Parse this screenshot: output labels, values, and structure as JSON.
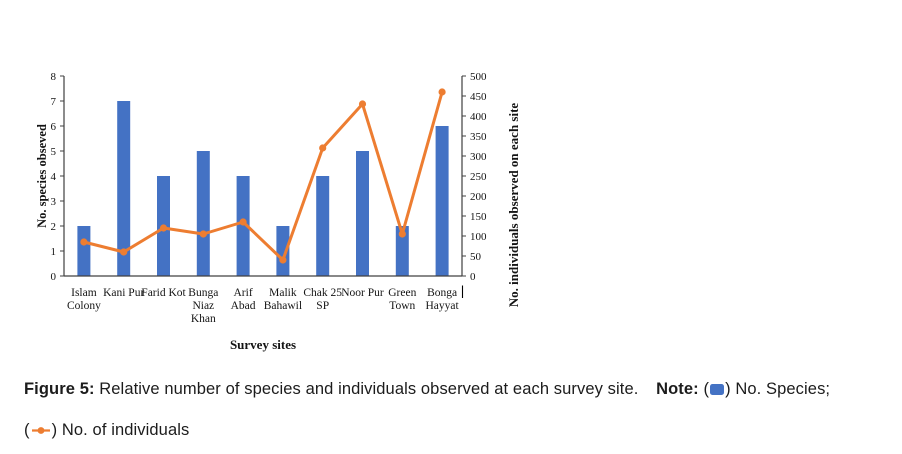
{
  "colors": {
    "bar": "#4472C4",
    "line": "#ED7D31",
    "axis": "#404040",
    "text": "#141414"
  },
  "icons": {
    "bar_swatch": "filled-blue-square",
    "line_marker": "orange-line-with-dot"
  },
  "chart_data": {
    "type": "bar+line combo",
    "title": "",
    "categories": [
      "Islam Colony",
      "Kani Pur",
      "Farid Kot",
      "Bunga Niaz Khan",
      "Arif Abad",
      "Malik Bahawil",
      "Chak 25 SP",
      "Noor Pur",
      "Green Town",
      "Bonga Hayyat"
    ],
    "category_label_lines": [
      [
        "Islam",
        "Colony"
      ],
      [
        "Kani Pur"
      ],
      [
        "Farid Kot"
      ],
      [
        "Bunga",
        "Niaz",
        "Khan"
      ],
      [
        "Arif",
        "Abad"
      ],
      [
        "Malik",
        "Bahawil"
      ],
      [
        "Chak 25",
        "SP"
      ],
      [
        "Noor Pur"
      ],
      [
        "Green",
        "Town"
      ],
      [
        "Bonga",
        "Hayyat"
      ]
    ],
    "series": [
      {
        "name": "No. Species",
        "type": "bar",
        "axis": "left",
        "values": [
          2,
          7,
          4,
          5,
          4,
          2,
          4,
          5,
          2,
          6
        ]
      },
      {
        "name": "No. of individuals",
        "type": "line",
        "axis": "right",
        "values": [
          85,
          60,
          120,
          105,
          135,
          40,
          320,
          430,
          105,
          460
        ]
      }
    ],
    "xlabel": "Survey sites",
    "left_axis": {
      "label": "No. species obseved",
      "min": 0,
      "max": 8,
      "tick_step": 1,
      "ticks": [
        0,
        1,
        2,
        3,
        4,
        5,
        6,
        7,
        8
      ]
    },
    "right_axis": {
      "label": "No. individuals observed on each site",
      "min": 0,
      "max": 500,
      "tick_step": 50,
      "ticks": [
        0,
        50,
        100,
        150,
        200,
        250,
        300,
        350,
        400,
        450,
        500
      ]
    },
    "grid": false,
    "legend_position": "none",
    "text_cursor_after_label": "Bonga"
  },
  "caption": {
    "figure_label": "Figure 5:",
    "figure_text": "Relative number of species and individuals observed at each survey site.",
    "note_label": "Note:",
    "species_open": "(",
    "species_close": ") No. Species;",
    "individuals_open": "(",
    "individuals_close": ") No. of individuals"
  }
}
